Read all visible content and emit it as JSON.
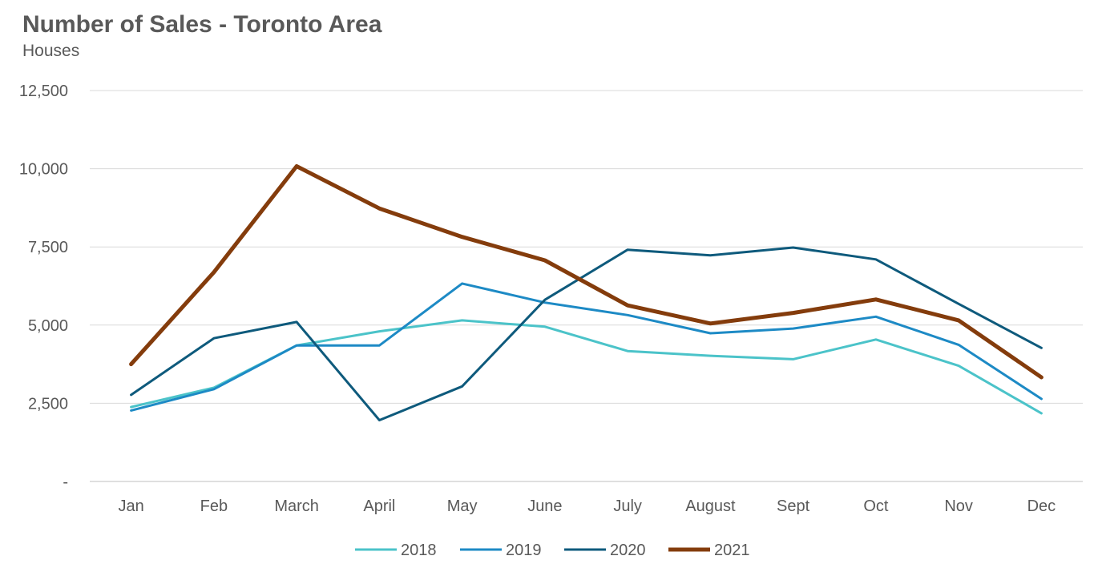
{
  "chart_data": {
    "type": "line",
    "title": "Number of Sales - Toronto Area",
    "subtitle": "Houses",
    "xlabel": "",
    "ylabel": "",
    "categories": [
      "Jan",
      "Feb",
      "March",
      "April",
      "May",
      "June",
      "July",
      "August",
      "Sept",
      "Oct",
      "Nov",
      "Dec"
    ],
    "ylim": [
      0,
      12500
    ],
    "yticks": [
      0,
      2500,
      5000,
      7500,
      10000,
      12500
    ],
    "ytick_labels": [
      "-",
      "2,500",
      "5,000",
      "7,500",
      "10,000",
      "12,500"
    ],
    "grid": true,
    "legend_position": "bottom",
    "series": [
      {
        "name": "2018",
        "color": "#4bc3c9",
        "width": 3,
        "values": [
          2380,
          3000,
          4350,
          4800,
          5150,
          4950,
          4170,
          4020,
          3910,
          4540,
          3700,
          2180
        ]
      },
      {
        "name": "2019",
        "color": "#1d8ac5",
        "width": 3,
        "values": [
          2270,
          2950,
          4350,
          4350,
          6330,
          5720,
          5320,
          4740,
          4890,
          5270,
          4370,
          2640
        ]
      },
      {
        "name": "2020",
        "color": "#0e5a7c",
        "width": 3,
        "values": [
          2770,
          4580,
          5100,
          1960,
          3040,
          5810,
          7410,
          7230,
          7480,
          7100,
          5680,
          4270
        ]
      },
      {
        "name": "2021",
        "color": "#843c0c",
        "width": 5,
        "values": [
          3750,
          6690,
          10080,
          8730,
          7820,
          7070,
          5630,
          5050,
          5390,
          5820,
          5150,
          3330
        ]
      }
    ]
  }
}
